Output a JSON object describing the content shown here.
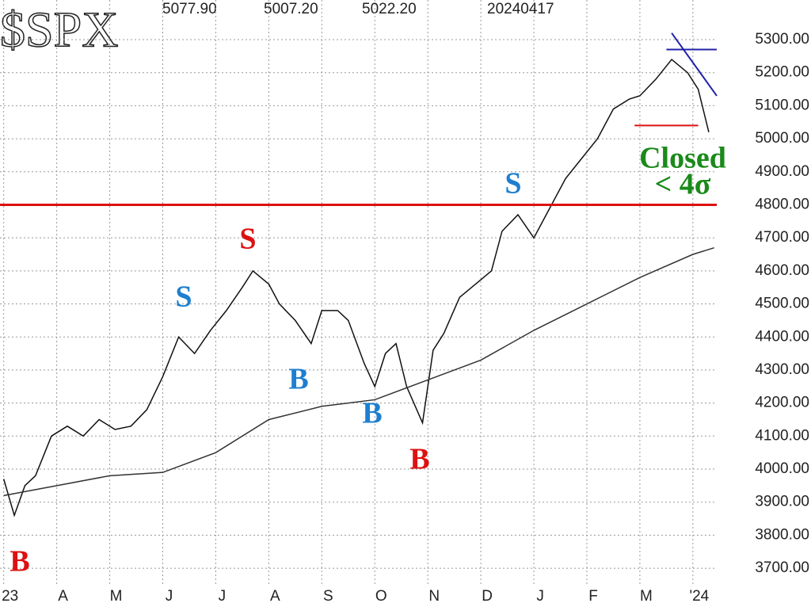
{
  "chart_data": {
    "type": "line",
    "title": "$SPX",
    "header": [
      "5077.90",
      "5007.20",
      "5022.20",
      "20240417"
    ],
    "xlim": [
      -0.07,
      13.45
    ],
    "ylim": [
      3645,
      5420
    ],
    "grid": true,
    "xticks": [
      {
        "value": 0,
        "label": "23"
      },
      {
        "value": 1,
        "label": "A"
      },
      {
        "value": 2,
        "label": "M"
      },
      {
        "value": 3,
        "label": "J"
      },
      {
        "value": 4,
        "label": "J"
      },
      {
        "value": 5,
        "label": "A"
      },
      {
        "value": 6,
        "label": "S"
      },
      {
        "value": 7,
        "label": "O"
      },
      {
        "value": 8,
        "label": "N"
      },
      {
        "value": 9,
        "label": "D"
      },
      {
        "value": 10,
        "label": "J"
      },
      {
        "value": 11,
        "label": "F"
      },
      {
        "value": 12,
        "label": "M"
      },
      {
        "value": 13,
        "label": "'24"
      }
    ],
    "yticks": [
      {
        "value": 3700,
        "label": "3700.00"
      },
      {
        "value": 3800,
        "label": "3800.00"
      },
      {
        "value": 3900,
        "label": "3900.00"
      },
      {
        "value": 4000,
        "label": "4000.00"
      },
      {
        "value": 4100,
        "label": "4100.00"
      },
      {
        "value": 4200,
        "label": "4200.00"
      },
      {
        "value": 4300,
        "label": "4300.00"
      },
      {
        "value": 4400,
        "label": "4400.00"
      },
      {
        "value": 4500,
        "label": "4500.00"
      },
      {
        "value": 4600,
        "label": "4600.00"
      },
      {
        "value": 4700,
        "label": "4700.00"
      },
      {
        "value": 4800,
        "label": "4800.00"
      },
      {
        "value": 4900,
        "label": "4900.00"
      },
      {
        "value": 5000,
        "label": "5000.00"
      },
      {
        "value": 5100,
        "label": "5100.00"
      },
      {
        "value": 5200,
        "label": "5200.00"
      },
      {
        "value": 5300,
        "label": "5300.00"
      }
    ],
    "series": [
      {
        "color": "#111",
        "x": [
          0,
          0.2,
          0.4,
          0.6,
          0.9,
          1.2,
          1.5,
          1.8,
          2.1,
          2.4,
          2.7,
          3.0,
          3.3,
          3.6,
          3.9,
          4.2,
          4.5,
          4.7,
          5.0,
          5.2,
          5.5,
          5.8,
          6.0,
          6.3,
          6.5,
          6.8,
          7.0,
          7.2,
          7.4,
          7.6,
          7.9,
          8.1,
          8.3,
          8.6,
          8.9,
          9.2,
          9.4,
          9.7,
          10.0,
          10.3,
          10.6,
          10.9,
          11.2,
          11.5,
          11.8,
          12.0,
          12.3,
          12.6,
          12.9,
          13.1,
          13.3
        ],
        "values": [
          3970,
          3860,
          3950,
          3980,
          4100,
          4130,
          4100,
          4150,
          4120,
          4130,
          4180,
          4280,
          4400,
          4350,
          4420,
          4480,
          4550,
          4600,
          4560,
          4500,
          4450,
          4380,
          4480,
          4480,
          4450,
          4320,
          4250,
          4350,
          4380,
          4250,
          4140,
          4360,
          4410,
          4520,
          4560,
          4600,
          4720,
          4770,
          4700,
          4790,
          4880,
          4940,
          5000,
          5090,
          5120,
          5130,
          5180,
          5240,
          5200,
          5150,
          5020
        ]
      },
      {
        "color": "#333",
        "x": [
          0,
          1,
          2,
          3,
          4,
          5,
          6,
          7,
          8,
          9,
          10,
          11,
          12,
          13,
          13.4
        ],
        "values": [
          3920,
          3950,
          3980,
          3990,
          4050,
          4150,
          4190,
          4210,
          4270,
          4330,
          4420,
          4500,
          4580,
          4650,
          4670
        ]
      }
    ],
    "segments": [
      {
        "color": "#d11",
        "x": [
          -0.07,
          13.45
        ],
        "y": [
          4800,
          4800
        ]
      },
      {
        "color": "#d11",
        "x": [
          11.9,
          13.1
        ],
        "y": [
          5040,
          5040
        ]
      },
      {
        "color": "#22a",
        "x": [
          12.5,
          13.45
        ],
        "y": [
          5270,
          5270
        ]
      },
      {
        "color": "#22a",
        "x": [
          12.6,
          13.45
        ],
        "y": [
          5320,
          5130
        ]
      }
    ],
    "annotations": [
      {
        "text": "B",
        "color": "#d11"
      },
      {
        "text": "S",
        "color": "#1e7fd0"
      },
      {
        "text": "S",
        "color": "#d11"
      },
      {
        "text": "B",
        "color": "#1e7fd0"
      },
      {
        "text": "B",
        "color": "#1e7fd0"
      },
      {
        "text": "B",
        "color": "#d11"
      },
      {
        "text": "S",
        "color": "#1e7fd0"
      },
      {
        "text": "Closed",
        "color": "#1a8a1a"
      },
      {
        "text": "< 4σ",
        "color": "#1a8a1a"
      }
    ]
  }
}
